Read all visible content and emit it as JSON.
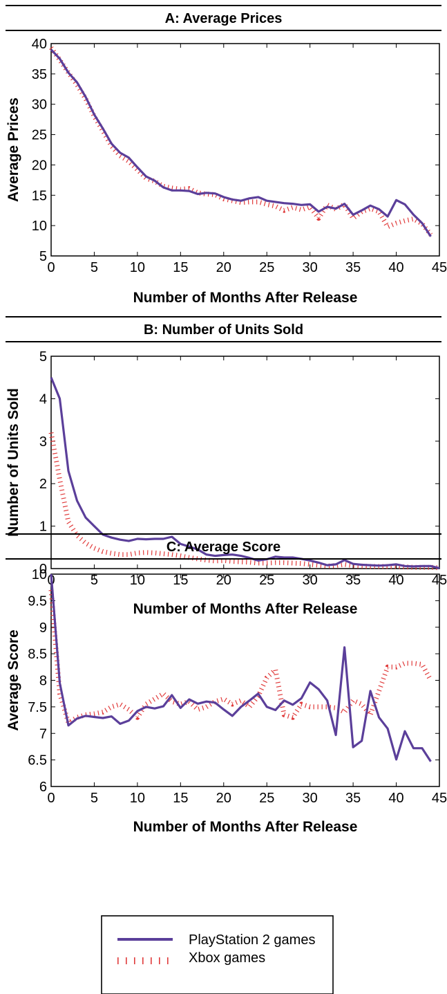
{
  "colors": {
    "ps2": "#5b3f9a",
    "xbox": "#e03a3a"
  },
  "legend": {
    "items": [
      {
        "label": "PlayStation 2 games",
        "style": "solid",
        "color": "#5b3f9a"
      },
      {
        "label": "Xbox games",
        "style": "dotted",
        "color": "#e03a3a"
      }
    ]
  },
  "chart_data": [
    {
      "type": "line",
      "title": "A: Average Prices",
      "xlabel": "Number of Months After Release",
      "ylabel": "Average Prices",
      "xlim": [
        0,
        45
      ],
      "ylim": [
        5,
        40
      ],
      "xticks": [
        0,
        5,
        10,
        15,
        20,
        25,
        30,
        35,
        40,
        45
      ],
      "yticks": [
        5,
        10,
        15,
        20,
        25,
        30,
        35,
        40
      ],
      "grid": false,
      "series": [
        {
          "name": "PlayStation 2 games",
          "style": "solid",
          "x": [
            0,
            1,
            2,
            3,
            4,
            5,
            6,
            7,
            8,
            9,
            10,
            11,
            12,
            13,
            14,
            15,
            16,
            17,
            18,
            19,
            20,
            21,
            22,
            23,
            24,
            25,
            26,
            27,
            28,
            29,
            30,
            31,
            32,
            33,
            34,
            35,
            36,
            37,
            38,
            39,
            40,
            41,
            42,
            43,
            44
          ],
          "values": [
            39,
            37.5,
            35.2,
            33.6,
            31.2,
            28.3,
            26,
            23.5,
            22,
            21.2,
            19.6,
            18.1,
            17.4,
            16.3,
            15.8,
            15.8,
            15.7,
            15.2,
            15.4,
            15.3,
            14.7,
            14.3,
            14.1,
            14.5,
            14.7,
            14.1,
            13.9,
            13.7,
            13.6,
            13.4,
            13.5,
            12.3,
            13.1,
            12.8,
            13.6,
            11.8,
            12.5,
            13.3,
            12.7,
            11.5,
            14.2,
            13.5,
            11.8,
            10.4,
            8.2
          ]
        },
        {
          "name": "Xbox games",
          "style": "dotted",
          "x": [
            0,
            1,
            2,
            3,
            4,
            5,
            6,
            7,
            8,
            9,
            10,
            11,
            12,
            13,
            14,
            15,
            16,
            17,
            18,
            19,
            20,
            21,
            22,
            23,
            24,
            25,
            26,
            27,
            28,
            29,
            30,
            31,
            32,
            33,
            34,
            35,
            36,
            37,
            38,
            39,
            40,
            41,
            42,
            43,
            44
          ],
          "values": [
            39.3,
            37.3,
            35.2,
            33.2,
            30.9,
            28,
            25.6,
            23.1,
            21.5,
            20.6,
            19.2,
            17.8,
            17.3,
            16.5,
            16.2,
            16,
            16.1,
            15.4,
            15.2,
            15.1,
            14.4,
            14.1,
            13.8,
            13.9,
            13.9,
            13.5,
            13.2,
            12.5,
            13,
            12.6,
            13.1,
            11.2,
            13.4,
            12.7,
            13.5,
            11.2,
            12.3,
            12.8,
            12.3,
            9.8,
            10.4,
            10.8,
            11.1,
            10.3,
            8.5
          ]
        }
      ]
    },
    {
      "type": "line",
      "title": "B: Number of Units Sold",
      "xlabel": "Number of Months After Release",
      "ylabel": "Number of Units Sold",
      "xlim": [
        0,
        45
      ],
      "ylim": [
        0,
        5
      ],
      "xticks": [
        0,
        5,
        10,
        15,
        20,
        25,
        30,
        35,
        40,
        45
      ],
      "yticks": [
        0,
        1,
        2,
        3,
        4,
        5
      ],
      "grid": false,
      "series": [
        {
          "name": "PlayStation 2 games",
          "style": "solid",
          "x": [
            0,
            1,
            2,
            3,
            4,
            5,
            6,
            7,
            8,
            9,
            10,
            11,
            12,
            13,
            14,
            15,
            16,
            17,
            18,
            19,
            20,
            21,
            22,
            23,
            24,
            25,
            26,
            27,
            28,
            29,
            30,
            31,
            32,
            33,
            34,
            35,
            36,
            37,
            38,
            39,
            40,
            41,
            42,
            43,
            44,
            45
          ],
          "values": [
            4.5,
            4,
            2.3,
            1.6,
            1.2,
            1,
            0.8,
            0.73,
            0.68,
            0.65,
            0.7,
            0.69,
            0.7,
            0.7,
            0.75,
            0.58,
            0.52,
            0.45,
            0.33,
            0.3,
            0.32,
            0.33,
            0.3,
            0.25,
            0.19,
            0.22,
            0.28,
            0.26,
            0.26,
            0.23,
            0.19,
            0.14,
            0.08,
            0.1,
            0.2,
            0.11,
            0.09,
            0.08,
            0.07,
            0.08,
            0.1,
            0.06,
            0.05,
            0.06,
            0.06,
            0.01
          ]
        },
        {
          "name": "Xbox games",
          "style": "dotted",
          "x": [
            0,
            1,
            2,
            3,
            4,
            5,
            6,
            7,
            8,
            9,
            10,
            11,
            12,
            13,
            14,
            15,
            16,
            17,
            18,
            19,
            20,
            21,
            22,
            23,
            24,
            25,
            26,
            27,
            28,
            29,
            30,
            31,
            32,
            33,
            34,
            35,
            36,
            37,
            38,
            39,
            40,
            41,
            42,
            43,
            44,
            45
          ],
          "values": [
            3.2,
            2.1,
            1.1,
            0.78,
            0.6,
            0.48,
            0.4,
            0.36,
            0.33,
            0.33,
            0.37,
            0.38,
            0.37,
            0.35,
            0.33,
            0.3,
            0.26,
            0.23,
            0.2,
            0.18,
            0.19,
            0.17,
            0.16,
            0.15,
            0.13,
            0.13,
            0.14,
            0.14,
            0.13,
            0.12,
            0.1,
            0.08,
            0.06,
            0.07,
            0.1,
            0.07,
            0.06,
            0.05,
            0.05,
            0.05,
            0.05,
            0.04,
            0.03,
            0.03,
            0.03,
            0.02
          ]
        }
      ]
    },
    {
      "type": "line",
      "title": "C: Average Score",
      "xlabel": "Number of Months After Release",
      "ylabel": "Average Score",
      "xlim": [
        0,
        45
      ],
      "ylim": [
        6,
        10
      ],
      "xticks": [
        0,
        5,
        10,
        15,
        20,
        25,
        30,
        35,
        40,
        45
      ],
      "yticks": [
        6,
        6.5,
        7,
        7.5,
        8,
        8.5,
        9,
        9.5,
        10
      ],
      "ytick_labels": [
        "6",
        "6.5",
        "7",
        "7.5",
        "8",
        "8.5",
        "9",
        "9.5",
        "10"
      ],
      "grid": false,
      "series": [
        {
          "name": "PlayStation 2 games",
          "style": "solid",
          "x": [
            0,
            1,
            2,
            3,
            4,
            5,
            6,
            7,
            8,
            9,
            10,
            11,
            12,
            13,
            14,
            15,
            16,
            17,
            18,
            19,
            20,
            21,
            22,
            23,
            24,
            25,
            26,
            27,
            28,
            29,
            30,
            31,
            32,
            33,
            34,
            35,
            36,
            37,
            38,
            39,
            40,
            41,
            42,
            43,
            44
          ],
          "values": [
            10,
            7.95,
            7.15,
            7.28,
            7.33,
            7.31,
            7.29,
            7.32,
            7.18,
            7.24,
            7.42,
            7.5,
            7.47,
            7.51,
            7.72,
            7.48,
            7.64,
            7.56,
            7.6,
            7.58,
            7.45,
            7.33,
            7.5,
            7.62,
            7.75,
            7.5,
            7.44,
            7.62,
            7.54,
            7.66,
            7.96,
            7.83,
            7.62,
            6.97,
            8.62,
            6.74,
            6.86,
            7.8,
            7.3,
            7.09,
            6.51,
            7.04,
            6.72,
            6.72,
            6.47
          ]
        },
        {
          "name": "Xbox games",
          "style": "dotted",
          "x": [
            0,
            1,
            2,
            3,
            4,
            5,
            6,
            7,
            8,
            9,
            10,
            11,
            12,
            13,
            14,
            15,
            16,
            17,
            18,
            19,
            20,
            21,
            22,
            23,
            24,
            25,
            26,
            27,
            28,
            29,
            30,
            31,
            32,
            33,
            34,
            35,
            36,
            37,
            38,
            39,
            40,
            41,
            42,
            43,
            44
          ],
          "values": [
            9.7,
            7.75,
            7.2,
            7.3,
            7.35,
            7.37,
            7.4,
            7.5,
            7.55,
            7.45,
            7.3,
            7.55,
            7.65,
            7.75,
            7.6,
            7.55,
            7.6,
            7.45,
            7.5,
            7.6,
            7.65,
            7.55,
            7.62,
            7.5,
            7.7,
            8.05,
            8.2,
            7.35,
            7.3,
            7.55,
            7.5,
            7.5,
            7.5,
            7.48,
            7.4,
            7.62,
            7.55,
            7.35,
            7.8,
            8.25,
            8.25,
            8.32,
            8.32,
            8.3,
            8
          ]
        }
      ]
    }
  ]
}
